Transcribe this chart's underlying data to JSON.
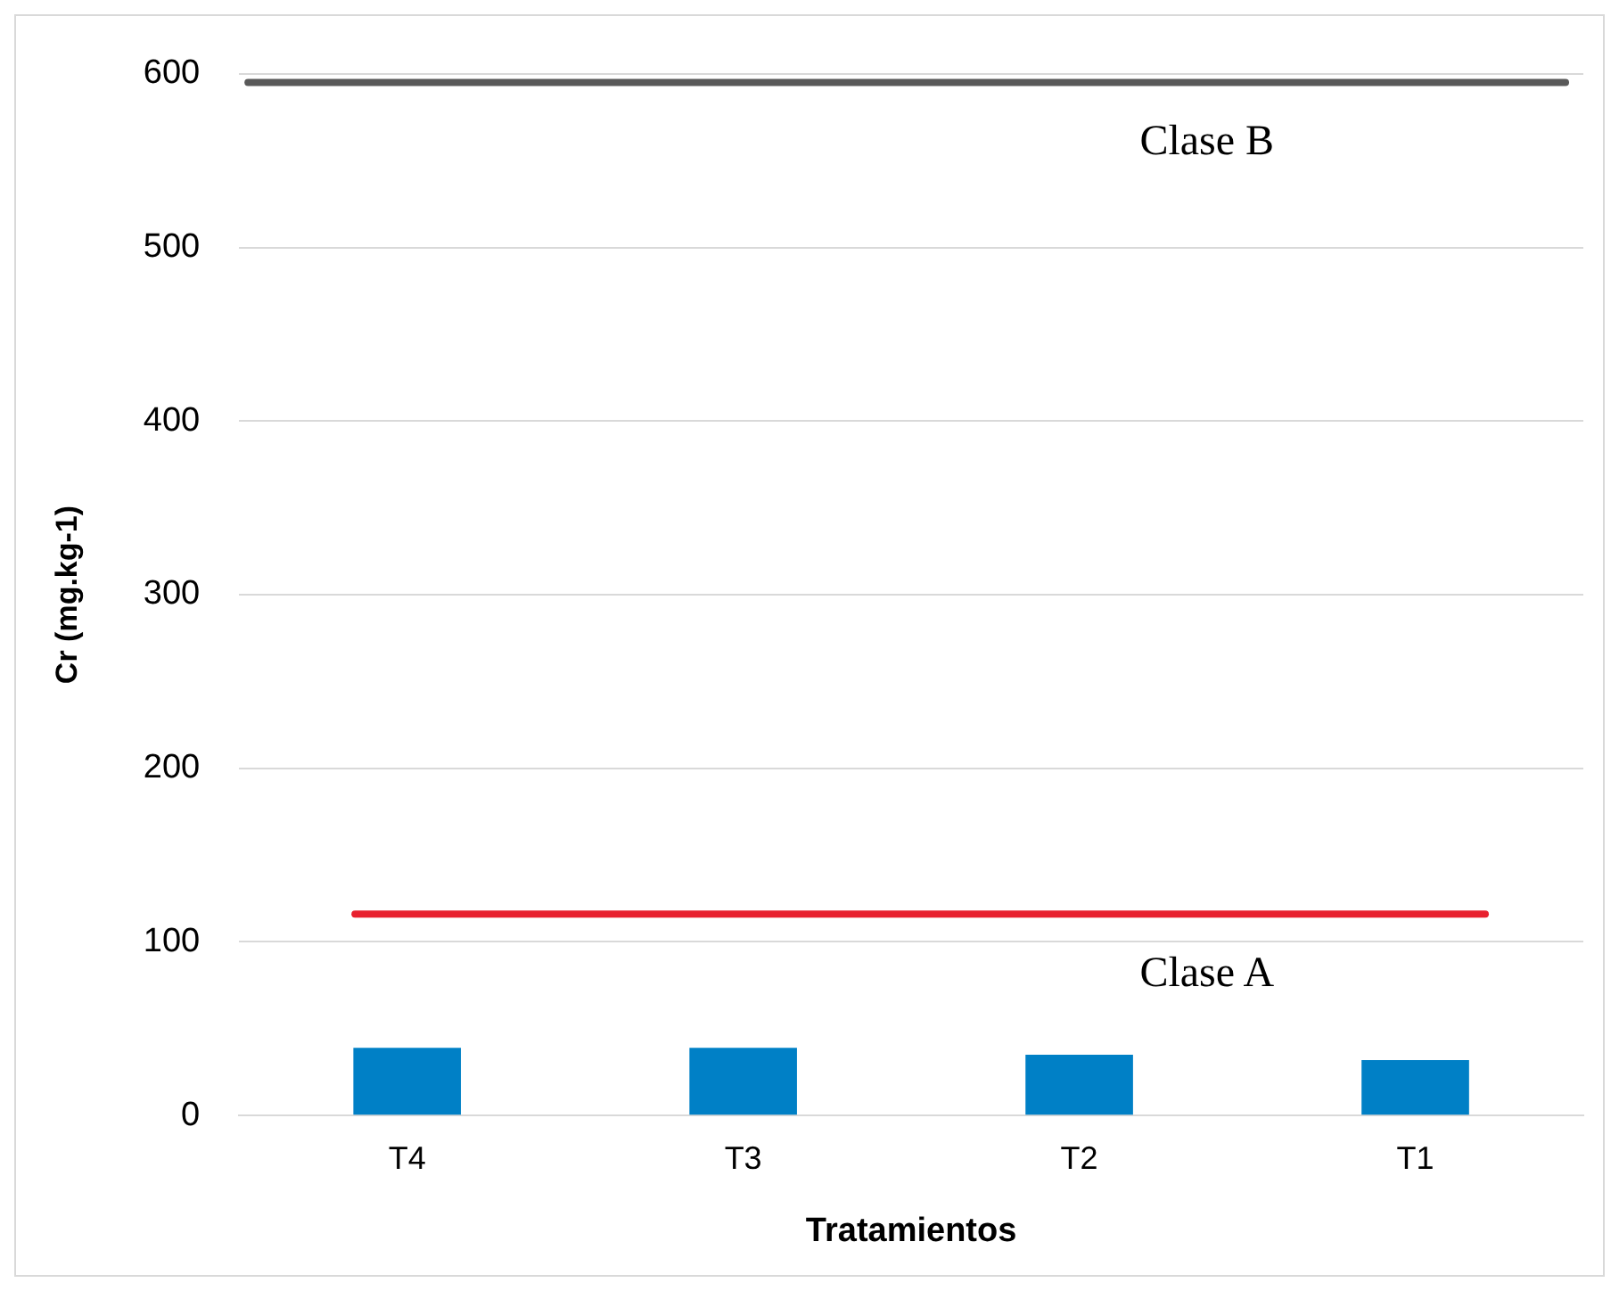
{
  "chart_data": {
    "type": "bar",
    "xlabel": "Tratamientos",
    "ylabel": "Cr (mg.kg-1)",
    "categories": [
      "T4",
      "T3",
      "T2",
      "T1"
    ],
    "values": [
      39,
      39,
      35,
      32
    ],
    "color": "#0080c6",
    "ylim": [
      0,
      600
    ],
    "yticks": [
      0,
      100,
      200,
      300,
      400,
      500,
      600
    ],
    "grid": "y",
    "ref_lines": [
      {
        "axis": "y",
        "value": 595,
        "label": "Clase B",
        "color": "#595959"
      },
      {
        "axis": "y",
        "value": 116,
        "label": "Clase A",
        "color": "#e8202e"
      }
    ]
  }
}
